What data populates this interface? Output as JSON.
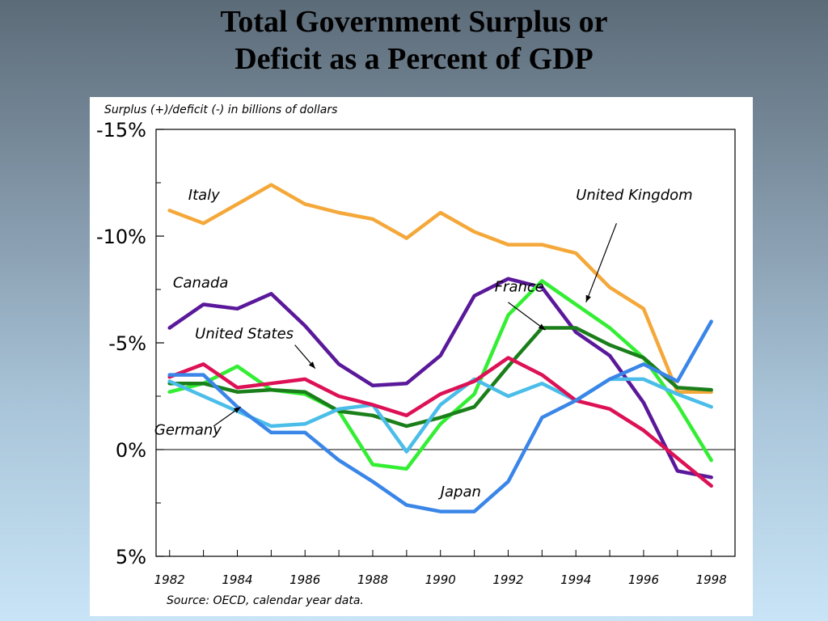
{
  "slide": {
    "title_line1": "Total Government Surplus or",
    "title_line2": "Deficit as a Percent of GDP"
  },
  "chart_data": {
    "type": "line",
    "subtitle": "Surplus (+)/deficit (-) in billions of dollars",
    "source": "Source:  OECD, calendar year data.",
    "x": [
      1982,
      1983,
      1984,
      1985,
      1986,
      1987,
      1988,
      1989,
      1990,
      1991,
      1992,
      1993,
      1994,
      1995,
      1996,
      1997,
      1998
    ],
    "x_tick_labels": [
      "1982",
      "1984",
      "1986",
      "1988",
      "1990",
      "1992",
      "1994",
      "1996",
      "1998"
    ],
    "x_tick_values": [
      1982,
      1984,
      1986,
      1988,
      1990,
      1992,
      1994,
      1996,
      1998
    ],
    "y_tick_labels": [
      "-15%",
      "-10%",
      "-5%",
      "0%",
      "5%"
    ],
    "y_tick_values": [
      15,
      10,
      5,
      0,
      -5
    ],
    "y_axis_inverted": true,
    "ylim": [
      -5,
      15
    ],
    "xlim": [
      1981.6,
      1998.7
    ],
    "grid": false,
    "zero_line": true,
    "series": [
      {
        "name": "Italy",
        "color": "#f5a83a",
        "values": [
          11.2,
          10.6,
          11.5,
          12.4,
          11.5,
          11.1,
          10.8,
          9.9,
          11.1,
          10.2,
          9.6,
          9.6,
          9.2,
          7.6,
          6.6,
          2.7,
          2.7
        ]
      },
      {
        "name": "Canada",
        "color": "#5a189a",
        "values": [
          5.7,
          6.8,
          6.6,
          7.3,
          5.8,
          4.0,
          3.0,
          3.1,
          4.4,
          7.2,
          8.0,
          7.6,
          5.5,
          4.4,
          2.2,
          -1.0,
          -1.3
        ]
      },
      {
        "name": "United Kingdom",
        "color": "#33ee33",
        "values": [
          2.7,
          3.1,
          3.9,
          2.8,
          2.6,
          1.8,
          -0.7,
          -0.9,
          1.2,
          2.6,
          6.3,
          7.9,
          6.8,
          5.7,
          4.3,
          2.1,
          -0.5
        ]
      },
      {
        "name": "France",
        "color": "#1a7f1a",
        "values": [
          3.1,
          3.1,
          2.7,
          2.8,
          2.7,
          1.8,
          1.6,
          1.1,
          1.5,
          2.0,
          3.9,
          5.7,
          5.7,
          4.9,
          4.3,
          2.9,
          2.8
        ]
      },
      {
        "name": "United States",
        "color": "#4bbde9",
        "values": [
          3.2,
          2.5,
          1.8,
          1.1,
          1.2,
          1.9,
          2.1,
          -0.1,
          2.1,
          3.3,
          2.5,
          3.1,
          2.3,
          3.3,
          3.3,
          2.6,
          2.0
        ]
      },
      {
        "name": "Germany",
        "color": "#dd1155",
        "values": [
          3.4,
          4.0,
          2.9,
          3.1,
          3.3,
          2.5,
          2.1,
          1.6,
          2.6,
          3.2,
          4.3,
          3.5,
          2.3,
          1.9,
          0.9,
          -0.4,
          -1.7
        ]
      },
      {
        "name": "Japan",
        "color": "#3a86e8",
        "values": [
          3.5,
          3.5,
          2.0,
          0.8,
          0.8,
          -0.5,
          -1.5,
          -2.6,
          -2.9,
          -2.9,
          -1.5,
          1.5,
          2.3,
          3.3,
          4.0,
          3.2,
          6.0
        ]
      }
    ],
    "annotations": [
      {
        "text": "Italy",
        "x": 1982.55,
        "y": 11.7
      },
      {
        "text": "Canada",
        "x": 1982.1,
        "y": 7.6
      },
      {
        "text": "United States",
        "x": 1982.75,
        "y": 5.2
      },
      {
        "text": "Germany",
        "x": 1981.55,
        "y": 0.7
      },
      {
        "text": "Japan",
        "x": 1990.0,
        "y": -2.2
      },
      {
        "text": "France",
        "x": 1991.6,
        "y": 7.4
      },
      {
        "text": "United Kingdom",
        "x": 1994.0,
        "y": 11.7
      }
    ],
    "arrows": [
      {
        "from": [
          1995.2,
          10.6
        ],
        "to": [
          1994.3,
          6.9
        ]
      },
      {
        "from": [
          1992.0,
          6.9
        ],
        "to": [
          1993.1,
          5.6
        ]
      },
      {
        "from": [
          1985.7,
          4.9
        ],
        "to": [
          1986.3,
          3.8
        ]
      },
      {
        "from": [
          1983.3,
          1.1
        ],
        "to": [
          1984.1,
          2.0
        ]
      }
    ]
  }
}
